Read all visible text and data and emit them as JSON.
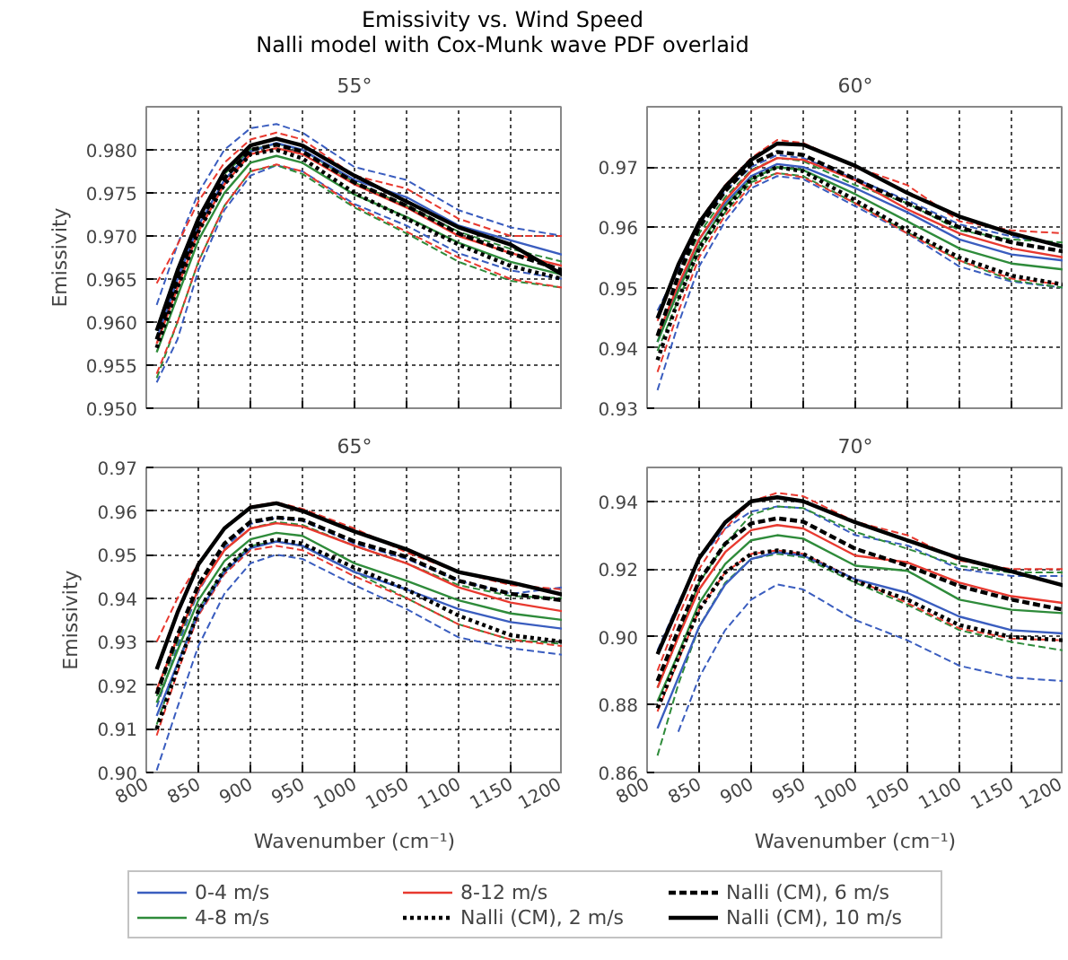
{
  "chart_data": [
    {
      "type": "line",
      "annotations": [
        "Emissivity vs. Wind Speed",
        "Nalli model with Cox-Munk wave PDF overlaid"
      ],
      "title": "55°",
      "ylabel": "Emissivity",
      "tick_labels": "y",
      "grid": true,
      "x": [
        810,
        830,
        850,
        875,
        900,
        925,
        950,
        1000,
        1050,
        1100,
        1150,
        1200
      ],
      "xlim": [
        800,
        1200
      ],
      "xticks": [
        800,
        850,
        900,
        950,
        1000,
        1050,
        1100,
        1150,
        1200
      ],
      "ylim": [
        0.95,
        0.985
      ],
      "yticks": [
        {
          "value": 0.95,
          "label": "0.950"
        },
        0.955,
        {
          "value": 0.96,
          "label": "0.960"
        },
        0.965,
        {
          "value": 0.97,
          "label": "0.970"
        },
        0.975,
        {
          "value": 0.98,
          "label": "0.980"
        }
      ],
      "series": [
        {
          "color": "#3a5dbf",
          "line_style": "dashed",
          "values": [
            0.962,
            0.969,
            0.975,
            0.98,
            0.9825,
            0.983,
            0.982,
            0.978,
            0.9765,
            0.973,
            0.971,
            0.97
          ]
        },
        {
          "color": "#3a5dbf",
          "line_style": "dashed",
          "values": [
            0.953,
            0.958,
            0.966,
            0.973,
            0.977,
            0.9782,
            0.9775,
            0.9737,
            0.9712,
            0.968,
            0.966,
            0.965
          ]
        },
        {
          "color": "#2e8b3a",
          "line_style": "dashed",
          "values": [
            0.959,
            0.966,
            0.972,
            0.9772,
            0.98,
            0.9807,
            0.98,
            0.9762,
            0.9735,
            0.9705,
            0.9685,
            0.967
          ]
        },
        {
          "color": "#2e8b3a",
          "line_style": "dashed",
          "values": [
            0.9535,
            0.96,
            0.967,
            0.9735,
            0.9775,
            0.9782,
            0.9772,
            0.9733,
            0.9703,
            0.967,
            0.9648,
            0.964
          ]
        },
        {
          "color": "#e8392f",
          "line_style": "dashed",
          "values": [
            0.9645,
            0.969,
            0.974,
            0.9785,
            0.9812,
            0.982,
            0.9812,
            0.977,
            0.9755,
            0.972,
            0.97,
            0.97
          ]
        },
        {
          "color": "#e8392f",
          "line_style": "dashed",
          "values": [
            0.954,
            0.96,
            0.967,
            0.9735,
            0.9775,
            0.9783,
            0.9775,
            0.9735,
            0.9705,
            0.9675,
            0.965,
            0.964
          ]
        },
        {
          "color": "#3a5dbf",
          "line_style": "solid",
          "values": [
            0.958,
            0.965,
            0.9712,
            0.9765,
            0.9798,
            0.9808,
            0.98,
            0.9765,
            0.9745,
            0.9712,
            0.9695,
            0.9678
          ]
        },
        {
          "color": "#2e8b3a",
          "line_style": "solid",
          "values": [
            0.9565,
            0.963,
            0.9695,
            0.975,
            0.9785,
            0.9793,
            0.9785,
            0.9748,
            0.9722,
            0.9692,
            0.967,
            0.9655
          ]
        },
        {
          "color": "#e8392f",
          "line_style": "solid",
          "values": [
            0.9575,
            0.964,
            0.9705,
            0.976,
            0.9795,
            0.9802,
            0.9795,
            0.976,
            0.9733,
            0.97,
            0.968,
            0.9665
          ]
        },
        {
          "color": "#000000",
          "line_style": "dotted",
          "values": [
            0.957,
            0.964,
            0.9705,
            0.976,
            0.9795,
            0.98,
            0.979,
            0.975,
            0.972,
            0.969,
            0.9665,
            0.965
          ]
        },
        {
          "color": "#000000",
          "line_style": "dashed",
          "values": [
            0.958,
            0.965,
            0.9713,
            0.9767,
            0.98,
            0.9806,
            0.9798,
            0.9762,
            0.9735,
            0.9703,
            0.968,
            0.966
          ]
        },
        {
          "color": "#000000",
          "line_style": "solid",
          "values": [
            0.959,
            0.966,
            0.972,
            0.9775,
            0.9805,
            0.9813,
            0.9805,
            0.977,
            0.974,
            0.971,
            0.969,
            0.9655
          ]
        }
      ]
    },
    {
      "type": "line",
      "title": "60°",
      "tick_labels": "y",
      "grid": true,
      "x": [
        810,
        830,
        850,
        875,
        900,
        925,
        950,
        1000,
        1050,
        1100,
        1150,
        1200
      ],
      "xlim": [
        800,
        1200
      ],
      "xticks": [
        800,
        850,
        900,
        950,
        1000,
        1050,
        1100,
        1150,
        1200
      ],
      "ylim": [
        0.93,
        0.98
      ],
      "yticks": [
        0.93,
        0.94,
        0.95,
        0.96,
        0.97
      ],
      "series": [
        {
          "color": "#3a5dbf",
          "line_style": "dashed",
          "values": [
            0.9462,
            0.953,
            0.9605,
            0.966,
            0.97,
            0.972,
            0.9715,
            0.968,
            0.9645,
            0.9605,
            0.9585,
            0.957
          ]
        },
        {
          "color": "#3a5dbf",
          "line_style": "dashed",
          "values": [
            0.933,
            0.944,
            0.9535,
            0.961,
            0.9665,
            0.9685,
            0.968,
            0.9635,
            0.959,
            0.9535,
            0.951,
            0.95
          ]
        },
        {
          "color": "#2e8b3a",
          "line_style": "dashed",
          "values": [
            0.942,
            0.9515,
            0.959,
            0.965,
            0.9695,
            0.9715,
            0.971,
            0.967,
            0.964,
            0.9595,
            0.958,
            0.9575
          ]
        },
        {
          "color": "#2e8b3a",
          "line_style": "dashed",
          "values": [
            0.9395,
            0.948,
            0.956,
            0.9625,
            0.9675,
            0.969,
            0.9685,
            0.964,
            0.9592,
            0.9545,
            0.9512,
            0.95
          ]
        },
        {
          "color": "#e8392f",
          "line_style": "dashed",
          "values": [
            0.9445,
            0.9535,
            0.961,
            0.967,
            0.9715,
            0.9745,
            0.974,
            0.97,
            0.967,
            0.961,
            0.9595,
            0.959
          ]
        },
        {
          "color": "#e8392f",
          "line_style": "dashed",
          "values": [
            0.936,
            0.946,
            0.955,
            0.962,
            0.967,
            0.969,
            0.9683,
            0.964,
            0.959,
            0.9545,
            0.9515,
            0.9505
          ]
        },
        {
          "color": "#3a5dbf",
          "line_style": "solid",
          "values": [
            0.941,
            0.95,
            0.958,
            0.964,
            0.9685,
            0.9705,
            0.97,
            0.9665,
            0.9625,
            0.958,
            0.9555,
            0.9545
          ]
        },
        {
          "color": "#2e8b3a",
          "line_style": "solid",
          "values": [
            0.941,
            0.9495,
            0.957,
            0.9635,
            0.968,
            0.97,
            0.9695,
            0.9655,
            0.961,
            0.9565,
            0.954,
            0.953
          ]
        },
        {
          "color": "#e8392f",
          "line_style": "solid",
          "values": [
            0.942,
            0.9505,
            0.958,
            0.9645,
            0.9693,
            0.9715,
            0.9712,
            0.9678,
            0.963,
            0.959,
            0.9565,
            0.955
          ]
        },
        {
          "color": "#000000",
          "line_style": "dotted",
          "values": [
            0.938,
            0.948,
            0.9565,
            0.963,
            0.968,
            0.97,
            0.9693,
            0.9645,
            0.9595,
            0.955,
            0.952,
            0.9505
          ]
        },
        {
          "color": "#000000",
          "line_style": "dashed",
          "values": [
            0.942,
            0.952,
            0.96,
            0.966,
            0.9705,
            0.9725,
            0.972,
            0.968,
            0.964,
            0.96,
            0.9575,
            0.956
          ]
        },
        {
          "color": "#000000",
          "line_style": "solid",
          "values": [
            0.9449,
            0.9538,
            0.9608,
            0.9667,
            0.9712,
            0.9739,
            0.9737,
            0.9702,
            0.9657,
            0.9618,
            0.959,
            0.9568
          ]
        }
      ]
    },
    {
      "type": "line",
      "title": "65°",
      "ylabel": "Emissivity",
      "xlabel": "Wavenumber (cm⁻¹)",
      "grid": true,
      "legend": "bottom",
      "x": [
        810,
        830,
        850,
        875,
        900,
        925,
        950,
        1000,
        1050,
        1100,
        1150,
        1200
      ],
      "xlim": [
        800,
        1200
      ],
      "xticks": [
        800,
        850,
        900,
        950,
        1000,
        1050,
        1100,
        1150,
        1200
      ],
      "ylim": [
        0.9,
        0.97
      ],
      "yticks": [
        {
          "value": 0.9,
          "label": "0.90"
        },
        0.91,
        0.92,
        0.93,
        0.94,
        0.95,
        0.96,
        0.97
      ],
      "series": [
        {
          "color": "#3a5dbf",
          "line_style": "dashed",
          "values": [
            0.915,
            0.929,
            0.9415,
            0.9515,
            0.957,
            0.9585,
            0.9578,
            0.9525,
            0.949,
            0.944,
            0.941,
            0.9425
          ]
        },
        {
          "color": "#3a5dbf",
          "line_style": "dashed",
          "values": [
            0.9005,
            0.915,
            0.929,
            0.941,
            0.948,
            0.95,
            0.949,
            0.943,
            0.9375,
            0.931,
            0.9285,
            0.927
          ]
        },
        {
          "color": "#2e8b3a",
          "line_style": "dashed",
          "values": [
            0.9175,
            0.93,
            0.942,
            0.951,
            0.956,
            0.9575,
            0.9568,
            0.952,
            0.948,
            0.943,
            0.9405,
            0.94
          ]
        },
        {
          "color": "#2e8b3a",
          "line_style": "dashed",
          "values": [
            0.911,
            0.925,
            0.9375,
            0.9465,
            0.952,
            0.953,
            0.952,
            0.946,
            0.94,
            0.934,
            0.9305,
            0.9295
          ]
        },
        {
          "color": "#e8392f",
          "line_style": "dashed",
          "values": [
            0.93,
            0.94,
            0.948,
            0.956,
            0.961,
            0.962,
            0.9605,
            0.956,
            0.9505,
            0.946,
            0.943,
            0.942
          ]
        },
        {
          "color": "#e8392f",
          "line_style": "dashed",
          "values": [
            0.9085,
            0.923,
            0.936,
            0.9455,
            0.951,
            0.952,
            0.951,
            0.945,
            0.94,
            0.934,
            0.9305,
            0.929
          ]
        },
        {
          "name": "0-4 m/s",
          "color": "#3a5dbf",
          "line_style": "solid",
          "values": [
            0.913,
            0.925,
            0.9365,
            0.946,
            0.9515,
            0.953,
            0.952,
            0.946,
            0.942,
            0.9375,
            0.9345,
            0.933
          ]
        },
        {
          "name": "4-8 m/s",
          "color": "#2e8b3a",
          "line_style": "solid",
          "values": [
            0.916,
            0.928,
            0.9395,
            0.9485,
            0.9535,
            0.955,
            0.9543,
            0.948,
            0.944,
            0.9395,
            0.9365,
            0.935
          ]
        },
        {
          "name": "8-12 m/s",
          "color": "#e8392f",
          "line_style": "solid",
          "values": [
            0.919,
            0.931,
            0.942,
            0.951,
            0.956,
            0.9572,
            0.9565,
            0.952,
            0.948,
            0.9425,
            0.939,
            0.937
          ]
        },
        {
          "name": "Nalli (CM), 2 m/s",
          "color": "#000000",
          "line_style": "dotted",
          "values": [
            0.91,
            0.924,
            0.937,
            0.9465,
            0.952,
            0.9535,
            0.9525,
            0.947,
            0.942,
            0.936,
            0.9315,
            0.93
          ]
        },
        {
          "name": "Nalli (CM), 6 m/s",
          "color": "#000000",
          "line_style": "dashed",
          "values": [
            0.918,
            0.9315,
            0.943,
            0.9525,
            0.9575,
            0.9585,
            0.958,
            0.953,
            0.9495,
            0.944,
            0.941,
            0.9395
          ]
        },
        {
          "name": "Nalli (CM), 10 m/s",
          "color": "#000000",
          "line_style": "solid",
          "values": [
            0.9237,
            0.9367,
            0.9477,
            0.956,
            0.9608,
            0.9618,
            0.96,
            0.9553,
            0.9512,
            0.946,
            0.9436,
            0.9408
          ]
        }
      ]
    },
    {
      "type": "line",
      "title": "70°",
      "xlabel": "Wavenumber (cm⁻¹)",
      "grid": true,
      "x": [
        810,
        830,
        850,
        875,
        900,
        925,
        950,
        1000,
        1050,
        1100,
        1150,
        1200
      ],
      "xlim": [
        800,
        1200
      ],
      "xticks": [
        800,
        850,
        900,
        950,
        1000,
        1050,
        1100,
        1150,
        1200
      ],
      "ylim": [
        0.86,
        0.95
      ],
      "yticks": [
        0.86,
        0.88,
        {
          "value": 0.9,
          "label": "0.90"
        },
        0.92,
        0.94
      ],
      "series": [
        {
          "color": "#3a5dbf",
          "line_style": "dashed",
          "values": [
            0.896,
            0.91,
            0.923,
            0.932,
            0.937,
            0.9385,
            0.938,
            0.93,
            0.927,
            0.92,
            0.918,
            0.918
          ]
        },
        {
          "color": "#3a5dbf",
          "line_style": "dashed",
          "values": [
            null,
            0.872,
            0.888,
            0.902,
            0.911,
            0.9155,
            0.914,
            0.905,
            0.899,
            0.8915,
            0.888,
            0.887
          ]
        },
        {
          "color": "#2e8b3a",
          "line_style": "dashed",
          "values": [
            0.885,
            0.9,
            0.916,
            0.9275,
            0.936,
            0.9385,
            0.938,
            0.931,
            0.926,
            0.921,
            0.919,
            0.919
          ]
        },
        {
          "color": "#2e8b3a",
          "line_style": "dashed",
          "values": [
            0.865,
            0.886,
            0.903,
            0.916,
            0.923,
            0.9245,
            0.9235,
            0.916,
            0.9095,
            0.902,
            0.8985,
            0.896
          ]
        },
        {
          "color": "#e8392f",
          "line_style": "dashed",
          "values": [
            0.89,
            0.906,
            0.92,
            0.932,
            0.94,
            0.9425,
            0.9415,
            0.934,
            0.93,
            0.9225,
            0.92,
            0.92
          ]
        },
        {
          "color": "#e8392f",
          "line_style": "dashed",
          "values": [
            0.878,
            0.893,
            0.908,
            0.919,
            0.9245,
            0.9255,
            0.9245,
            0.917,
            0.91,
            0.9025,
            0.8995,
            0.899
          ]
        },
        {
          "color": "#3a5dbf",
          "line_style": "solid",
          "values": [
            0.873,
            0.888,
            0.903,
            0.9155,
            0.923,
            0.925,
            0.924,
            0.917,
            0.913,
            0.906,
            0.902,
            0.901
          ]
        },
        {
          "color": "#2e8b3a",
          "line_style": "solid",
          "values": [
            0.881,
            0.895,
            0.91,
            0.9215,
            0.9285,
            0.93,
            0.929,
            0.921,
            0.9195,
            0.911,
            0.908,
            0.907
          ]
        },
        {
          "color": "#e8392f",
          "line_style": "solid",
          "values": [
            0.885,
            0.9,
            0.914,
            0.925,
            0.9315,
            0.933,
            0.932,
            0.924,
            0.922,
            0.916,
            0.912,
            0.91
          ]
        },
        {
          "color": "#000000",
          "line_style": "dotted",
          "values": [
            0.879,
            0.894,
            0.908,
            0.919,
            0.9245,
            0.9255,
            0.9245,
            0.9165,
            0.911,
            0.9035,
            0.9,
            0.899
          ]
        },
        {
          "color": "#000000",
          "line_style": "dashed",
          "values": [
            0.887,
            0.902,
            0.9165,
            0.9275,
            0.9335,
            0.935,
            0.934,
            0.926,
            0.921,
            0.915,
            0.911,
            0.908
          ]
        },
        {
          "color": "#000000",
          "line_style": "solid",
          "values": [
            0.8949,
            0.909,
            0.9232,
            0.9338,
            0.94,
            0.9412,
            0.94,
            0.9338,
            0.9285,
            0.9232,
            0.9193,
            0.9152
          ]
        }
      ]
    }
  ]
}
